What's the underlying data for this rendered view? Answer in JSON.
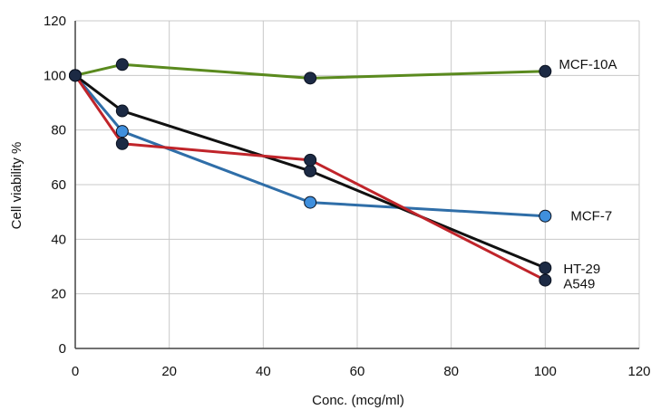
{
  "chart_data": {
    "type": "line",
    "title": "",
    "xlabel": "Conc. (mcg/ml)",
    "ylabel": "Cell viability %",
    "xlim": [
      0,
      120
    ],
    "ylim": [
      0,
      120
    ],
    "xticks": [
      0,
      20,
      40,
      60,
      80,
      100,
      120
    ],
    "yticks": [
      0,
      20,
      40,
      60,
      80,
      100,
      120
    ],
    "grid": true,
    "legend": "inline labels at right end of each line",
    "x": [
      0,
      10,
      50,
      100
    ],
    "series": [
      {
        "name": "MCF-10A",
        "values": [
          100,
          104,
          99,
          101.5
        ],
        "color": "#5a8a1e",
        "marker_color": "#1c2a44"
      },
      {
        "name": "MCF-7",
        "values": [
          100,
          79.5,
          53.5,
          48.5
        ],
        "color": "#2f6ea8",
        "marker_color": "#3f8fdd"
      },
      {
        "name": "HT-29",
        "values": [
          100,
          87,
          65,
          29.5
        ],
        "color": "#111111",
        "marker_color": "#1c2a44"
      },
      {
        "name": "A549",
        "values": [
          100,
          75,
          69,
          25
        ],
        "color": "#c0242a",
        "marker_color": "#1c2a44"
      }
    ]
  }
}
